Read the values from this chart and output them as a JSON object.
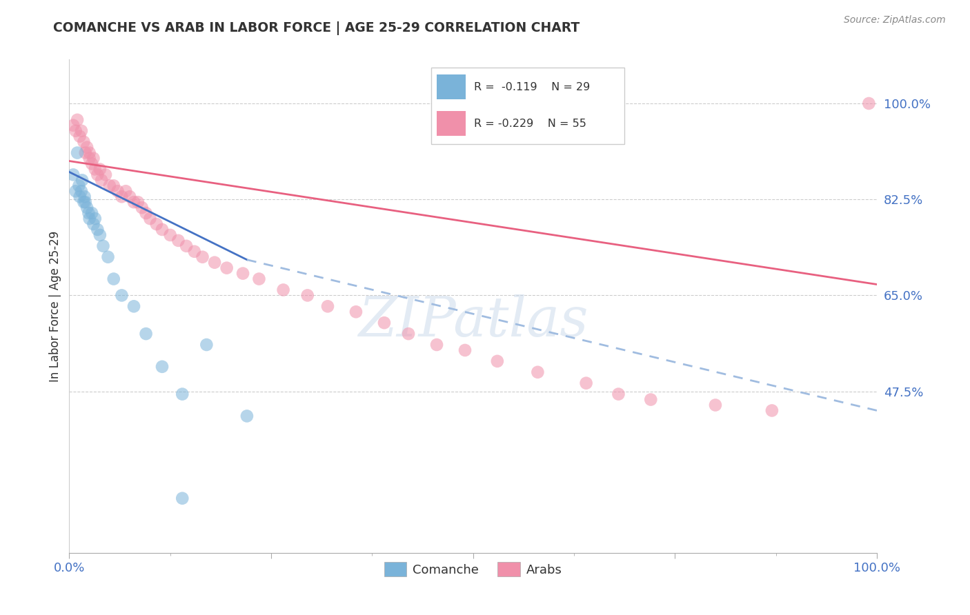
{
  "title": "COMANCHE VS ARAB IN LABOR FORCE | AGE 25-29 CORRELATION CHART",
  "source": "Source: ZipAtlas.com",
  "ylabel": "In Labor Force | Age 25-29",
  "ytick_labels": [
    "100.0%",
    "82.5%",
    "65.0%",
    "47.5%"
  ],
  "ytick_values": [
    1.0,
    0.825,
    0.65,
    0.475
  ],
  "xlim": [
    0.0,
    1.0
  ],
  "ylim": [
    0.18,
    1.08
  ],
  "comanche_color": "#7ab3d9",
  "arab_color": "#f090aa",
  "trend_comanche_solid_color": "#4472c4",
  "trend_comanche_dash_color": "#a0bce0",
  "trend_arab_color": "#e86080",
  "comanche_x": [
    0.005,
    0.008,
    0.01,
    0.012,
    0.013,
    0.015,
    0.016,
    0.018,
    0.019,
    0.02,
    0.022,
    0.024,
    0.025,
    0.028,
    0.03,
    0.032,
    0.035,
    0.038,
    0.042,
    0.048,
    0.055,
    0.065,
    0.08,
    0.095,
    0.115,
    0.14,
    0.17,
    0.22,
    0.14
  ],
  "comanche_y": [
    0.87,
    0.84,
    0.91,
    0.85,
    0.83,
    0.84,
    0.86,
    0.82,
    0.83,
    0.82,
    0.81,
    0.8,
    0.79,
    0.8,
    0.78,
    0.79,
    0.77,
    0.76,
    0.74,
    0.72,
    0.68,
    0.65,
    0.63,
    0.58,
    0.52,
    0.47,
    0.56,
    0.43,
    0.28
  ],
  "arab_x": [
    0.005,
    0.008,
    0.01,
    0.013,
    0.015,
    0.018,
    0.02,
    0.022,
    0.025,
    0.025,
    0.028,
    0.03,
    0.032,
    0.035,
    0.038,
    0.04,
    0.045,
    0.05,
    0.055,
    0.06,
    0.065,
    0.07,
    0.075,
    0.08,
    0.085,
    0.09,
    0.095,
    0.1,
    0.108,
    0.115,
    0.125,
    0.135,
    0.145,
    0.155,
    0.165,
    0.18,
    0.195,
    0.215,
    0.235,
    0.265,
    0.295,
    0.32,
    0.355,
    0.39,
    0.42,
    0.455,
    0.49,
    0.53,
    0.58,
    0.64,
    0.68,
    0.72,
    0.8,
    0.87,
    0.99
  ],
  "arab_y": [
    0.96,
    0.95,
    0.97,
    0.94,
    0.95,
    0.93,
    0.91,
    0.92,
    0.9,
    0.91,
    0.89,
    0.9,
    0.88,
    0.87,
    0.88,
    0.86,
    0.87,
    0.85,
    0.85,
    0.84,
    0.83,
    0.84,
    0.83,
    0.82,
    0.82,
    0.81,
    0.8,
    0.79,
    0.78,
    0.77,
    0.76,
    0.75,
    0.74,
    0.73,
    0.72,
    0.71,
    0.7,
    0.69,
    0.68,
    0.66,
    0.65,
    0.63,
    0.62,
    0.6,
    0.58,
    0.56,
    0.55,
    0.53,
    0.51,
    0.49,
    0.47,
    0.46,
    0.45,
    0.44,
    1.0
  ],
  "trend_comanche_x0": 0.0,
  "trend_comanche_y0": 0.875,
  "trend_comanche_x1": 0.22,
  "trend_comanche_y1": 0.715,
  "trend_comanche_dash_x1": 1.0,
  "trend_comanche_dash_y1": 0.44,
  "trend_arab_x0": 0.0,
  "trend_arab_y0": 0.895,
  "trend_arab_x1": 1.0,
  "trend_arab_y1": 0.67
}
